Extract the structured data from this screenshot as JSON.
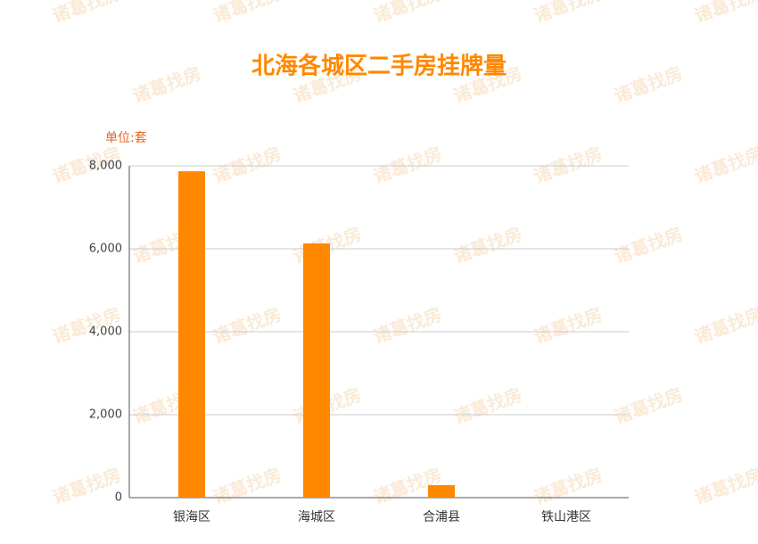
{
  "chart_data": {
    "type": "bar",
    "title": "北海各城区二手房挂牌量",
    "y_unit_label": "单位:套",
    "watermark": "诸葛找房",
    "categories": [
      "银海区",
      "海城区",
      "合浦县",
      "铁山港区"
    ],
    "values": [
      7870,
      6130,
      300,
      0
    ],
    "color": "#ff8800",
    "ylim": [
      0,
      8000
    ],
    "yticks": [
      0,
      {
        "value": 2000,
        "label": "2,000"
      },
      {
        "value": 4000,
        "label": "4,000"
      },
      {
        "value": 6000,
        "label": "6,000"
      },
      {
        "value": 8000,
        "label": "8,000"
      }
    ],
    "grid": true
  }
}
